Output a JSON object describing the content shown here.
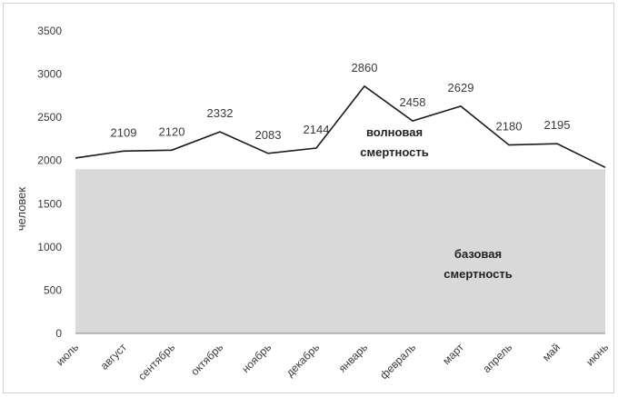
{
  "chart_data": {
    "type": "area",
    "categories": [
      "июль",
      "август",
      "сентябрь",
      "октябрь",
      "ноябрь",
      "декабрь",
      "январь",
      "февраль",
      "март",
      "апрель",
      "май",
      "июнь"
    ],
    "values": [
      2030,
      2109,
      2120,
      2332,
      2083,
      2144,
      2860,
      2458,
      2629,
      2180,
      2195,
      1920
    ],
    "data_labels": [
      "",
      "2109",
      "2120",
      "2332",
      "2083",
      "2144",
      "2860",
      "2458",
      "2629",
      "2180",
      "2195",
      ""
    ],
    "baseline_value": 1900,
    "ylabel": "человек",
    "ylim": [
      0,
      3500
    ],
    "yticks": [
      "0",
      "500",
      "1000",
      "1500",
      "2000",
      "2500",
      "3000",
      "3500"
    ],
    "annotations": {
      "wave_line1": "волновая",
      "wave_line2": "смертность",
      "base_line1": "базовая",
      "base_line2": "смертность"
    },
    "grid": false,
    "legend": "none",
    "colors": {
      "line": "#1a1a1a",
      "base_area": "#d9d9d9"
    }
  }
}
